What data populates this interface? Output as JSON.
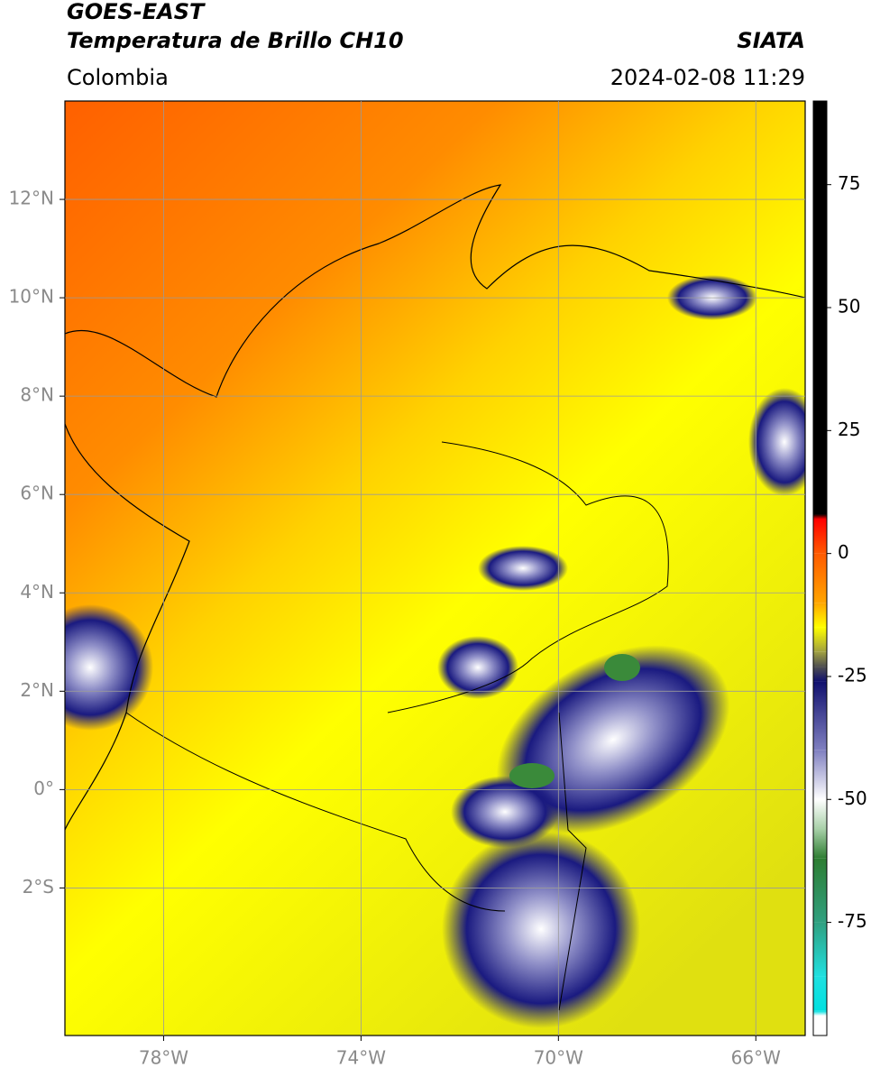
{
  "header": {
    "satellite": "GOES-EAST",
    "product": "Temperatura de Brillo CH10",
    "source": "SIATA",
    "region": "Colombia",
    "timestamp": "2024-02-08 11:29"
  },
  "map": {
    "xlim": [
      -80,
      -65
    ],
    "ylim": [
      -5,
      14
    ],
    "grid": true,
    "xticks": [
      {
        "value": -78,
        "label": "78°W"
      },
      {
        "value": -74,
        "label": "74°W"
      },
      {
        "value": -70,
        "label": "70°W"
      },
      {
        "value": -66,
        "label": "66°W"
      }
    ],
    "yticks": [
      {
        "value": 12,
        "label": "12°N"
      },
      {
        "value": 10,
        "label": "10°N"
      },
      {
        "value": 8,
        "label": "8°N"
      },
      {
        "value": 6,
        "label": "6°N"
      },
      {
        "value": 4,
        "label": "4°N"
      },
      {
        "value": 2,
        "label": "2°N"
      },
      {
        "value": 0,
        "label": "0°"
      },
      {
        "value": -2,
        "label": "2°S"
      }
    ]
  },
  "colorbar": {
    "lim": [
      -98,
      92
    ],
    "ticks": [
      75,
      50,
      25,
      0,
      -25,
      -50,
      -75
    ],
    "stops": [
      {
        "value": 92,
        "color": "#000000"
      },
      {
        "value": 8,
        "color": "#000000"
      },
      {
        "value": 7,
        "color": "#ff0000"
      },
      {
        "value": 0,
        "color": "#ff5a00"
      },
      {
        "value": -10,
        "color": "#ffa500"
      },
      {
        "value": -15,
        "color": "#ffff00"
      },
      {
        "value": -20,
        "color": "#a0a040"
      },
      {
        "value": -23,
        "color": "#505050"
      },
      {
        "value": -26,
        "color": "#10106e"
      },
      {
        "value": -40,
        "color": "#8080c0"
      },
      {
        "value": -50,
        "color": "#ffffff"
      },
      {
        "value": -56,
        "color": "#a8d0a8"
      },
      {
        "value": -62,
        "color": "#2e7d32"
      },
      {
        "value": -75,
        "color": "#30a080"
      },
      {
        "value": -86,
        "color": "#20e0e0"
      },
      {
        "value": -93,
        "color": "#00e0e0"
      },
      {
        "value": -94,
        "color": "#ffffff"
      },
      {
        "value": -98,
        "color": "#ffffff"
      }
    ]
  }
}
